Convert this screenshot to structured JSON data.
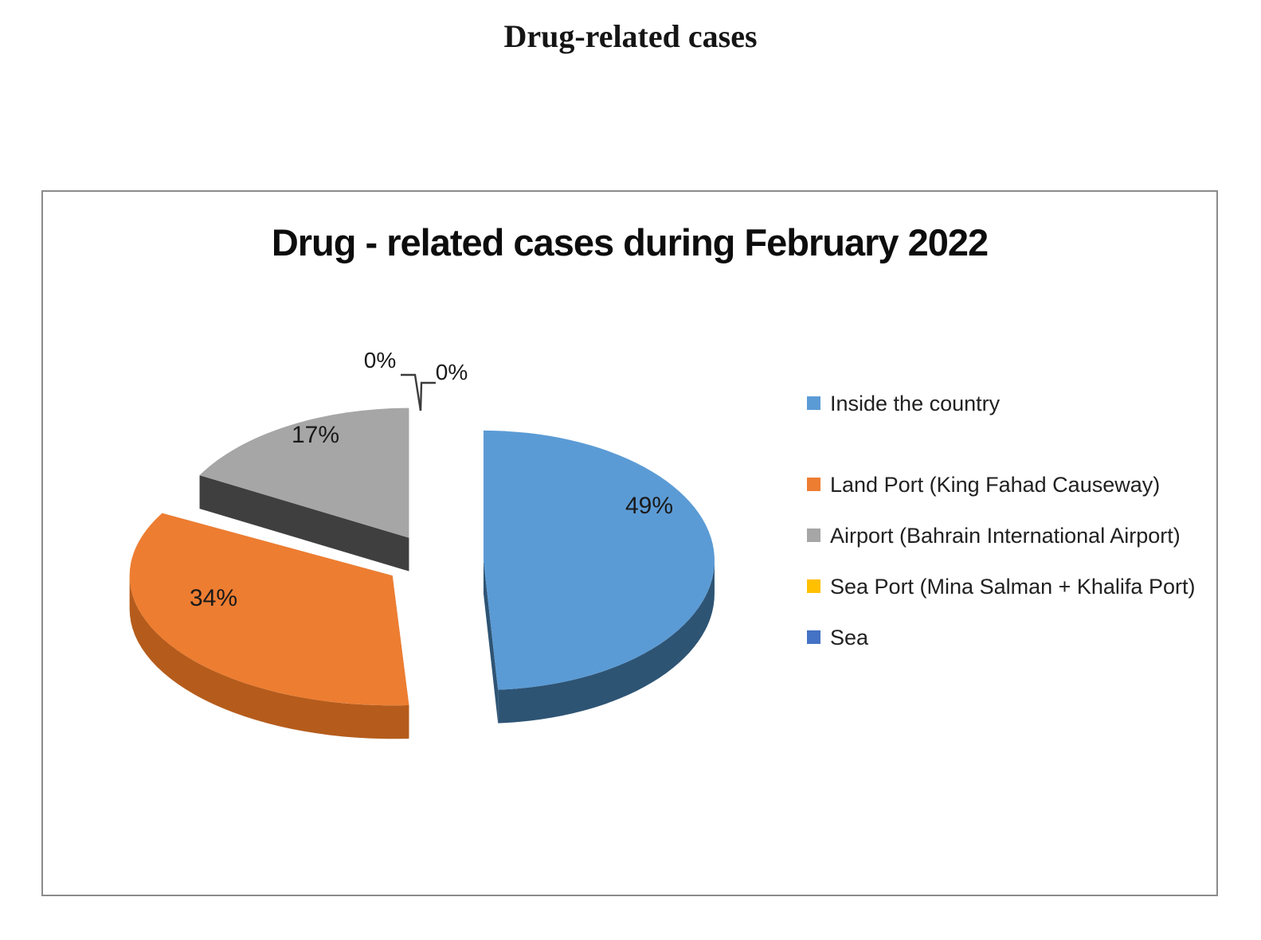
{
  "page": {
    "heading": "Drug-related cases"
  },
  "chart_data": {
    "type": "pie",
    "title": "Drug - related cases during February 2022",
    "unit": "percent",
    "style": "3d-exploded-pie",
    "legend_position": "right",
    "grid": false,
    "slices": [
      {
        "label": "Inside the country",
        "value": 49,
        "data_label": "49%",
        "color": "#5B9BD5",
        "side_color": "#2E5474"
      },
      {
        "label": "Land Port (King Fahad Causeway)",
        "value": 34,
        "data_label": "34%",
        "color": "#ED7D31",
        "side_color": "#B55C1C"
      },
      {
        "label": "Airport (Bahrain International Airport)",
        "value": 17,
        "data_label": "17%",
        "color": "#A6A6A6",
        "side_color": "#3F3F3F"
      },
      {
        "label": "Sea Port (Mina Salman + Khalifa Port)",
        "value": 0,
        "data_label": "0%",
        "color": "#FFC000",
        "side_color": "#8A6800"
      },
      {
        "label": "Sea",
        "value": 0,
        "data_label": "0%",
        "color": "#4472C4",
        "side_color": "#2A4A85"
      }
    ]
  }
}
